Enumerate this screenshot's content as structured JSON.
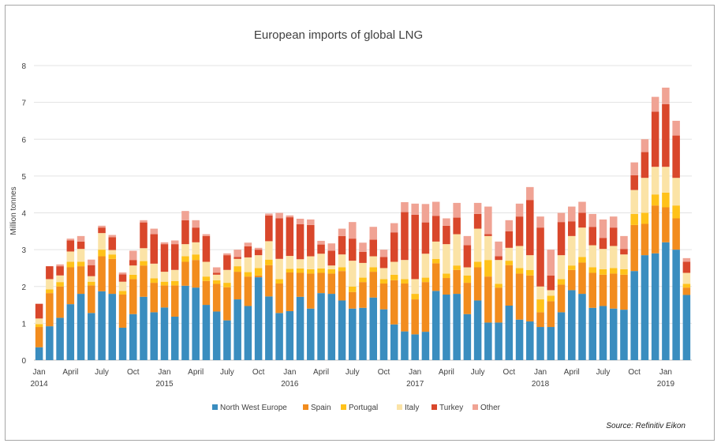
{
  "chart_data": {
    "type": "bar",
    "stacked": true,
    "title": "European imports of global LNG",
    "ylabel": "Million tonnes",
    "ylim": [
      0,
      8
    ],
    "yticks": [
      0,
      1,
      2,
      3,
      4,
      5,
      6,
      7,
      8
    ],
    "grid": true,
    "legend_position": "bottom",
    "source": "Source: Refinitiv Eikon",
    "x_tick_labels": [
      {
        "index": 0,
        "month": "Jan",
        "year": "2014"
      },
      {
        "index": 3,
        "month": "April",
        "year": ""
      },
      {
        "index": 6,
        "month": "July",
        "year": ""
      },
      {
        "index": 9,
        "month": "Oct",
        "year": ""
      },
      {
        "index": 12,
        "month": "Jan",
        "year": "2015"
      },
      {
        "index": 15,
        "month": "April",
        "year": ""
      },
      {
        "index": 18,
        "month": "July",
        "year": ""
      },
      {
        "index": 21,
        "month": "Oct",
        "year": ""
      },
      {
        "index": 24,
        "month": "Jan",
        "year": "2016"
      },
      {
        "index": 27,
        "month": "April",
        "year": ""
      },
      {
        "index": 30,
        "month": "July",
        "year": ""
      },
      {
        "index": 33,
        "month": "Oct",
        "year": ""
      },
      {
        "index": 36,
        "month": "Jan",
        "year": "2017"
      },
      {
        "index": 39,
        "month": "April",
        "year": ""
      },
      {
        "index": 42,
        "month": "July",
        "year": ""
      },
      {
        "index": 45,
        "month": "Oct",
        "year": ""
      },
      {
        "index": 48,
        "month": "Jan",
        "year": "2018"
      },
      {
        "index": 51,
        "month": "April",
        "year": ""
      },
      {
        "index": 54,
        "month": "July",
        "year": ""
      },
      {
        "index": 57,
        "month": "Oct",
        "year": ""
      },
      {
        "index": 60,
        "month": "Jan",
        "year": "2019"
      }
    ],
    "x": [
      "Jan 2014",
      "Feb 2014",
      "Mar 2014",
      "Apr 2014",
      "May 2014",
      "Jun 2014",
      "Jul 2014",
      "Aug 2014",
      "Sep 2014",
      "Oct 2014",
      "Nov 2014",
      "Dec 2014",
      "Jan 2015",
      "Feb 2015",
      "Mar 2015",
      "Apr 2015",
      "May 2015",
      "Jun 2015",
      "Jul 2015",
      "Aug 2015",
      "Sep 2015",
      "Oct 2015",
      "Nov 2015",
      "Dec 2015",
      "Jan 2016",
      "Feb 2016",
      "Mar 2016",
      "Apr 2016",
      "May 2016",
      "Jun 2016",
      "Jul 2016",
      "Aug 2016",
      "Sep 2016",
      "Oct 2016",
      "Nov 2016",
      "Dec 2016",
      "Jan 2017",
      "Feb 2017",
      "Mar 2017",
      "Apr 2017",
      "May 2017",
      "Jun 2017",
      "Jul 2017",
      "Aug 2017",
      "Sep 2017",
      "Oct 2017",
      "Nov 2017",
      "Dec 2017",
      "Jan 2018",
      "Feb 2018",
      "Mar 2018",
      "Apr 2018",
      "May 2018",
      "Jun 2018",
      "Jul 2018",
      "Aug 2018",
      "Sep 2018",
      "Oct 2018",
      "Nov 2018",
      "Dec 2018",
      "Jan 2019",
      "Feb 2019",
      "Mar 2019"
    ],
    "series": [
      {
        "name": "North West Europe",
        "color": "#3A8DBF",
        "values": [
          0.35,
          0.92,
          1.15,
          1.52,
          1.8,
          1.28,
          1.87,
          1.8,
          0.88,
          1.25,
          1.72,
          1.3,
          1.43,
          1.18,
          2.02,
          1.97,
          1.5,
          1.32,
          1.08,
          1.65,
          1.47,
          2.25,
          1.73,
          1.28,
          1.33,
          1.72,
          1.4,
          1.82,
          1.8,
          1.62,
          1.4,
          1.42,
          1.7,
          1.38,
          0.97,
          0.78,
          0.7,
          0.77,
          1.88,
          1.78,
          1.8,
          1.25,
          1.62,
          1.02,
          1.02,
          1.48,
          1.1,
          1.05,
          0.9,
          0.9,
          1.3,
          1.9,
          1.8,
          1.42,
          1.47,
          1.4,
          1.37,
          2.42,
          2.85,
          2.9,
          3.2,
          3.0,
          1.77
        ]
      },
      {
        "name": "Spain",
        "color": "#F28C1E",
        "values": [
          0.55,
          0.9,
          0.85,
          1.0,
          0.75,
          0.75,
          0.95,
          0.95,
          0.9,
          0.95,
          0.85,
          0.8,
          0.6,
          0.85,
          0.65,
          0.75,
          0.65,
          0.75,
          0.9,
          0.75,
          0.8,
          0.05,
          0.85,
          0.8,
          1.05,
          0.65,
          0.95,
          0.55,
          0.55,
          0.8,
          0.45,
          0.7,
          0.7,
          0.7,
          1.2,
          1.3,
          0.95,
          1.35,
          0.75,
          0.45,
          0.65,
          0.85,
          0.9,
          1.25,
          0.95,
          1.1,
          1.25,
          1.25,
          0.4,
          0.7,
          0.75,
          0.55,
          0.85,
          0.95,
          0.85,
          0.95,
          0.95,
          1.25,
          0.85,
          1.3,
          0.95,
          0.85,
          0.2
        ]
      },
      {
        "name": "Portugal",
        "color": "#FFC21A",
        "values": [
          0.08,
          0.1,
          0.12,
          0.15,
          0.12,
          0.1,
          0.18,
          0.12,
          0.1,
          0.12,
          0.12,
          0.12,
          0.1,
          0.12,
          0.15,
          0.15,
          0.12,
          0.1,
          0.12,
          0.15,
          0.12,
          0.2,
          0.15,
          0.12,
          0.1,
          0.12,
          0.12,
          0.12,
          0.12,
          0.1,
          0.15,
          0.12,
          0.12,
          0.12,
          0.15,
          0.12,
          0.15,
          0.12,
          0.12,
          0.12,
          0.12,
          0.2,
          0.15,
          0.45,
          0.1,
          0.12,
          0.15,
          0.15,
          0.35,
          0.15,
          0.15,
          0.12,
          0.15,
          0.15,
          0.15,
          0.15,
          0.15,
          0.3,
          0.3,
          0.3,
          0.4,
          0.35,
          0.1
        ]
      },
      {
        "name": "Italy",
        "color": "#FBE3A6",
        "values": [
          0.15,
          0.28,
          0.18,
          0.28,
          0.35,
          0.15,
          0.45,
          0.12,
          0.25,
          0.25,
          0.35,
          0.4,
          0.27,
          0.3,
          0.33,
          0.33,
          0.4,
          0.15,
          0.35,
          0.2,
          0.4,
          0.35,
          0.5,
          0.55,
          0.35,
          0.25,
          0.35,
          0.4,
          0.1,
          0.35,
          0.7,
          0.4,
          0.3,
          0.3,
          0.35,
          0.52,
          0.4,
          0.65,
          0.47,
          0.8,
          0.85,
          0.22,
          0.9,
          0.65,
          0.65,
          0.35,
          0.6,
          0.4,
          0.35,
          0.15,
          0.65,
          0.8,
          0.8,
          0.6,
          0.55,
          0.6,
          0.4,
          0.65,
          0.95,
          0.75,
          0.7,
          0.75,
          0.3
        ]
      },
      {
        "name": "Turkey",
        "color": "#D9472B",
        "values": [
          0.4,
          0.35,
          0.25,
          0.3,
          0.2,
          0.3,
          0.15,
          0.35,
          0.2,
          0.15,
          0.7,
          0.8,
          0.75,
          0.7,
          0.65,
          0.4,
          0.7,
          0.05,
          0.4,
          0.05,
          0.3,
          0.15,
          0.7,
          1.1,
          1.05,
          0.95,
          0.85,
          0.25,
          0.4,
          0.5,
          0.6,
          0.3,
          0.45,
          0.3,
          0.8,
          1.3,
          1.75,
          0.85,
          0.7,
          0.5,
          0.45,
          0.6,
          0.4,
          0.05,
          0.1,
          0.45,
          0.8,
          1.5,
          1.6,
          0.4,
          0.9,
          0.4,
          0.4,
          0.5,
          0.3,
          0.5,
          0.15,
          0.4,
          0.7,
          1.5,
          1.7,
          1.15,
          0.3
        ]
      },
      {
        "name": "Other",
        "color": "#F0A394",
        "values": [
          0.0,
          0.0,
          0.05,
          0.05,
          0.15,
          0.15,
          0.05,
          0.06,
          0.05,
          0.25,
          0.06,
          0.15,
          0.05,
          0.1,
          0.25,
          0.2,
          0.05,
          0.15,
          0.05,
          0.2,
          0.1,
          0.05,
          0.05,
          0.15,
          0.05,
          0.15,
          0.15,
          0.1,
          0.2,
          0.2,
          0.45,
          0.25,
          0.35,
          0.2,
          0.25,
          0.27,
          0.3,
          0.5,
          0.38,
          0.2,
          0.4,
          0.25,
          0.3,
          0.75,
          0.4,
          0.3,
          0.35,
          0.35,
          0.3,
          0.7,
          0.25,
          0.4,
          0.3,
          0.35,
          0.5,
          0.3,
          0.35,
          0.35,
          0.35,
          0.4,
          0.45,
          0.4,
          0.1
        ]
      }
    ]
  }
}
